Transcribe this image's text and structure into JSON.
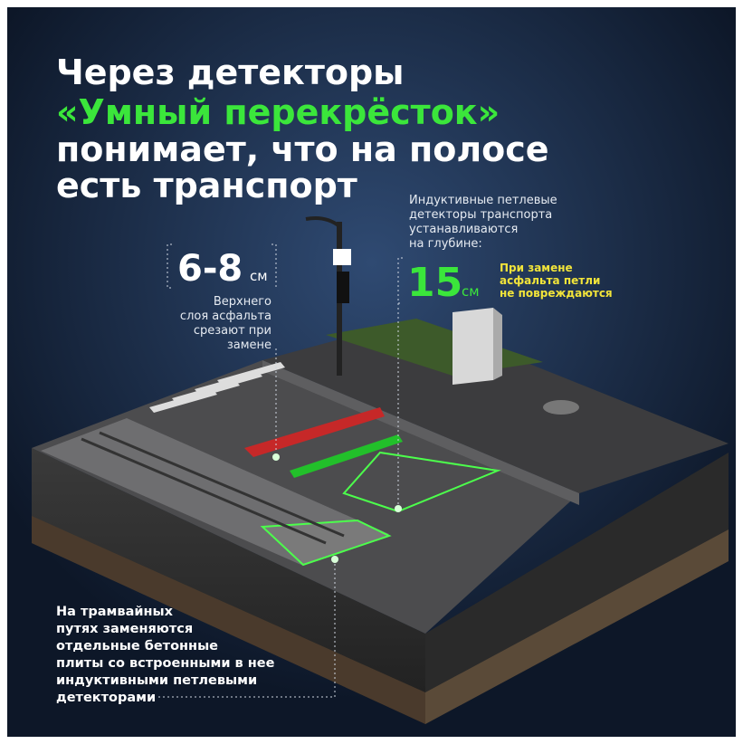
{
  "title": {
    "lines": [
      "Через детекторы",
      "«Умный перекрёсток»",
      "понимает, что на полосе",
      "есть транспорт"
    ]
  },
  "left_callout": {
    "value": "6-8",
    "unit": "см",
    "lines": [
      "Верхнего",
      "слоя асфальта",
      "срезают при",
      "замене"
    ]
  },
  "right_callout": {
    "lines": [
      "Индуктивные петлевые",
      "детекторы транспорта",
      "устанавливаются",
      "на глубине:"
    ],
    "value": 15,
    "unit": "см",
    "note": [
      "При замене",
      "асфальта петли",
      "не повреждаются"
    ]
  },
  "bottom_callout": {
    "lines": [
      "На трамвайных",
      "путях заменяются",
      "отдельные бетонные",
      "плиты со встроенными в нее",
      "индуктивными петлевыми",
      "детекторами"
    ]
  }
}
